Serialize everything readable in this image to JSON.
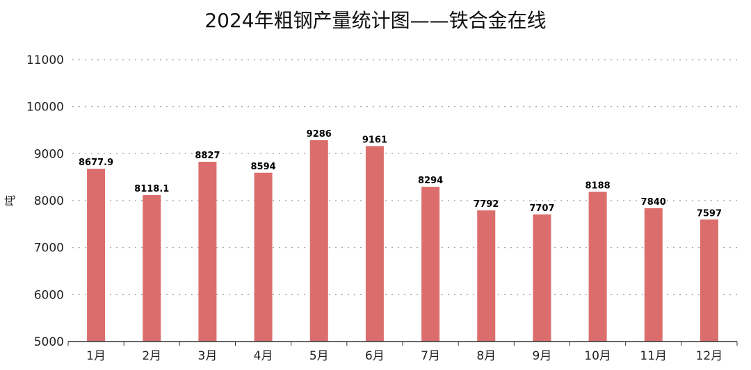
{
  "chart_data": {
    "type": "bar",
    "title": "2024年粗钢产量统计图——铁合金在线",
    "xlabel": "",
    "ylabel": "吨",
    "categories": [
      "1月",
      "2月",
      "3月",
      "4月",
      "5月",
      "6月",
      "7月",
      "8月",
      "9月",
      "10月",
      "11月",
      "12月"
    ],
    "values": [
      8677.9,
      8118.1,
      8827,
      8594,
      9286,
      9161,
      8294,
      7792,
      7707,
      8188,
      7840,
      7597
    ],
    "data_labels": [
      "8677.9",
      "8118.1",
      "8827",
      "8594",
      "9286",
      "9161",
      "8294",
      "7792",
      "7707",
      "8188",
      "7840",
      "7597"
    ],
    "ylim": [
      5000,
      11000
    ],
    "yticks": [
      "5000",
      "6000",
      "7000",
      "8000",
      "9000",
      "10000",
      "11000"
    ],
    "grid": "horizontal dotted",
    "bar_color": "#db6e6c"
  }
}
